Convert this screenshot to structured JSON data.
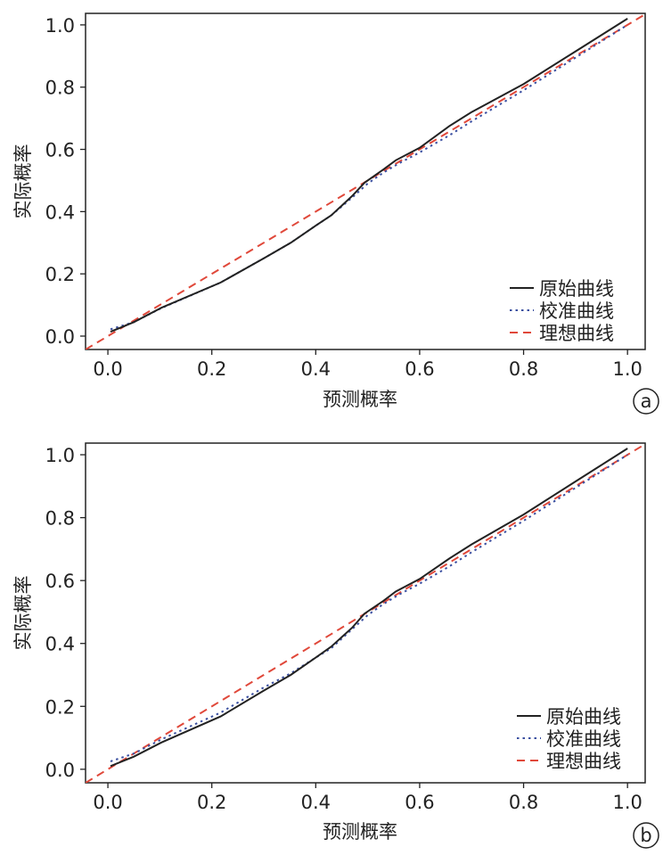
{
  "chart_data": [
    {
      "type": "line",
      "panel_label": "a",
      "xlabel": "预测概率",
      "ylabel": "实际概率",
      "xlim": [
        -0.043,
        1.034
      ],
      "ylim": [
        -0.043,
        1.037
      ],
      "xticks": [
        "0.0",
        "0.2",
        "0.4",
        "0.6",
        "0.8",
        "1.0"
      ],
      "yticks": [
        "0.0",
        "0.2",
        "0.4",
        "0.6",
        "0.8",
        "1.0"
      ],
      "grid": false,
      "legend_position": "bottom-right",
      "series": [
        {
          "name": "原始曲线",
          "color": "#222222",
          "style": "solid",
          "x": [
            0.005,
            0.05,
            0.103,
            0.217,
            0.3,
            0.352,
            0.4,
            0.43,
            0.47,
            0.494,
            0.53,
            0.554,
            0.6,
            0.657,
            0.7,
            0.8,
            0.9,
            1.0
          ],
          "y": [
            0.014,
            0.045,
            0.091,
            0.172,
            0.25,
            0.3,
            0.355,
            0.388,
            0.45,
            0.493,
            0.535,
            0.565,
            0.605,
            0.675,
            0.72,
            0.81,
            0.915,
            1.02
          ]
        },
        {
          "name": "校准曲线",
          "color": "#3a4fa0",
          "style": "dotted",
          "x": [
            0.005,
            0.05,
            0.103,
            0.217,
            0.3,
            0.352,
            0.4,
            0.43,
            0.47,
            0.5,
            0.53,
            0.56,
            0.6,
            0.657,
            0.7,
            0.8,
            0.9,
            1.0
          ],
          "y": [
            0.022,
            0.045,
            0.09,
            0.172,
            0.25,
            0.3,
            0.355,
            0.388,
            0.445,
            0.49,
            0.525,
            0.555,
            0.59,
            0.645,
            0.69,
            0.79,
            0.895,
            1.0
          ]
        },
        {
          "name": "理想曲线",
          "color": "#e0483a",
          "style": "dashed",
          "x": [
            -0.043,
            1.034
          ],
          "y": [
            -0.043,
            1.034
          ]
        }
      ]
    },
    {
      "type": "line",
      "panel_label": "b",
      "xlabel": "预测概率",
      "ylabel": "实际概率",
      "xlim": [
        -0.043,
        1.034
      ],
      "ylim": [
        -0.043,
        1.037
      ],
      "xticks": [
        "0.0",
        "0.2",
        "0.4",
        "0.6",
        "0.8",
        "1.0"
      ],
      "yticks": [
        "0.0",
        "0.2",
        "0.4",
        "0.6",
        "0.8",
        "1.0"
      ],
      "grid": false,
      "legend_position": "bottom-right",
      "series": [
        {
          "name": "原始曲线",
          "color": "#222222",
          "style": "solid",
          "x": [
            0.005,
            0.05,
            0.103,
            0.217,
            0.3,
            0.352,
            0.4,
            0.43,
            0.47,
            0.494,
            0.53,
            0.554,
            0.6,
            0.657,
            0.7,
            0.8,
            0.9,
            1.0
          ],
          "y": [
            0.01,
            0.04,
            0.085,
            0.168,
            0.25,
            0.3,
            0.355,
            0.39,
            0.45,
            0.495,
            0.535,
            0.565,
            0.605,
            0.67,
            0.715,
            0.81,
            0.915,
            1.02
          ]
        },
        {
          "name": "校准曲线",
          "color": "#3a4fa0",
          "style": "dotted",
          "x": [
            0.005,
            0.05,
            0.103,
            0.217,
            0.3,
            0.352,
            0.4,
            0.43,
            0.47,
            0.5,
            0.53,
            0.56,
            0.6,
            0.657,
            0.7,
            0.8,
            0.9,
            1.0
          ],
          "y": [
            0.025,
            0.05,
            0.095,
            0.18,
            0.26,
            0.305,
            0.355,
            0.385,
            0.445,
            0.49,
            0.525,
            0.555,
            0.59,
            0.645,
            0.69,
            0.79,
            0.895,
            1.0
          ]
        },
        {
          "name": "理想曲线",
          "color": "#e0483a",
          "style": "dashed",
          "x": [
            -0.043,
            1.034
          ],
          "y": [
            -0.043,
            1.034
          ]
        }
      ]
    }
  ]
}
